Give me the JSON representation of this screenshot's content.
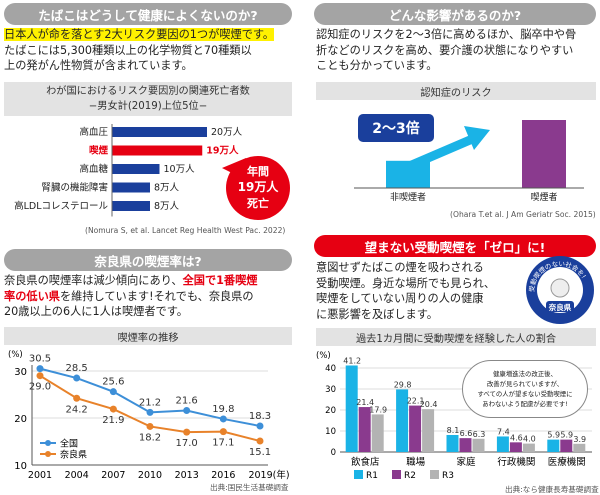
{
  "s1": {
    "header": "たばこはどうして健康によくないのか?",
    "p_hl": "日本人が命を落とす2大リスク要因の1つが喫煙です。",
    "p_l2": "たばこには5,300種類以上の化学物質と70種類以",
    "p_l3": "上の発がん性物質が含まれています。",
    "chart_title_1": "わが国におけるリスク要因別の関連死亡者数",
    "chart_title_2": "−男女計(2019)上位5位−",
    "citation": "(Nomura S, et al. Lancet Reg Health West Pac. 2022)",
    "callout": [
      "年間",
      "19万人",
      "死亡"
    ]
  },
  "s2": {
    "header": "どんな影響があるのか?",
    "lines": [
      "認知症のリスクを2〜3倍に高めるほか、脳卒中や骨",
      "折などのリスクを高め、要介護の状態になりやすい",
      "ことも分かっています。"
    ],
    "chart_title": "認知症のリスク",
    "arrow_label": "2〜3倍",
    "citation": "(Ohara T.et al. J Am Geriatr Soc. 2015)"
  },
  "s3": {
    "header": "奈良県の喫煙率は?",
    "l1": "奈良県の喫煙率は減少傾向にあり、",
    "l1_red": "全国で1番喫煙",
    "l2_red": "率の低い県",
    "l2": "を維持しています!それでも、奈良県の",
    "l3": "20歳以上の6人に1人は喫煙者です。",
    "chart_title": "喫煙率の推移",
    "citation": "出典:国民生活基礎調査"
  },
  "s4": {
    "header": "望まない受動喫煙を「ゼロ」に!",
    "lines": [
      "意図せずたばこの煙を吸わされる",
      "受動喫煙。身近な場所でも見られ、",
      "喫煙をしていない周りの人の健康",
      "に悪影響を及ぼします。"
    ],
    "badge_arc": "受動喫煙のない社会を!",
    "badge_label": "奈良県",
    "chart_title": "過去1カ月間に受動喫煙を経験した人の割合",
    "bubble": [
      "健康増進法の改正後、",
      "改善が見られていますが、",
      "すべての人が望まない受動喫煙に",
      "あわないよう配慮が必要です!"
    ],
    "citation": "出典:なら健康長寿基礎調査"
  },
  "colors": {
    "header": "#a4a4a4",
    "red": "#e60012",
    "blue": "#1a3f9c",
    "cyan": "#1ab3e6",
    "purple": "#8a3a8e",
    "grey": "#b3b3b3",
    "orange": "#e8822a",
    "lineblue": "#3d8fd8"
  },
  "chart_data": [
    {
      "type": "bar",
      "orientation": "horizontal",
      "categories": [
        "高血圧",
        "喫煙",
        "高血糖",
        "腎臓の機能障害",
        "高LDLコレステロール"
      ],
      "values": [
        20,
        19,
        10,
        8,
        8
      ],
      "value_labels": [
        "20万人",
        "19万人",
        "10万人",
        "8万人",
        "8万人"
      ],
      "highlight": "喫煙"
    },
    {
      "type": "bar",
      "categories": [
        "非喫煙者",
        "喫煙者"
      ],
      "values": [
        1,
        2.5
      ]
    },
    {
      "type": "line",
      "x": [
        2001,
        2004,
        2007,
        2010,
        2013,
        2016,
        2019
      ],
      "x_unit": "(年)",
      "y_unit": "(%)",
      "yticks": [
        10,
        20,
        30
      ],
      "ylim": [
        10,
        30
      ],
      "series": [
        {
          "name": "全国",
          "values": [
            30.5,
            28.5,
            25.6,
            21.2,
            21.6,
            19.8,
            18.3
          ]
        },
        {
          "name": "奈良県",
          "values": [
            29.0,
            24.2,
            21.9,
            18.2,
            17.0,
            17.1,
            15.1
          ]
        }
      ],
      "legend": "bottom-left"
    },
    {
      "type": "bar",
      "categories": [
        "飲食店",
        "職場",
        "家庭",
        "行政機関",
        "医療機関"
      ],
      "y_unit": "(%)",
      "yticks": [
        0,
        10,
        20,
        30,
        40
      ],
      "ylim": [
        0,
        40
      ],
      "series": [
        {
          "name": "R1",
          "values": [
            41.2,
            29.8,
            8.1,
            7.4,
            5.9
          ]
        },
        {
          "name": "R2",
          "values": [
            21.4,
            22.1,
            6.6,
            4.6,
            5.9
          ]
        },
        {
          "name": "R3",
          "values": [
            17.9,
            20.4,
            6.3,
            4.0,
            3.9
          ]
        }
      ],
      "legend": "bottom"
    }
  ]
}
